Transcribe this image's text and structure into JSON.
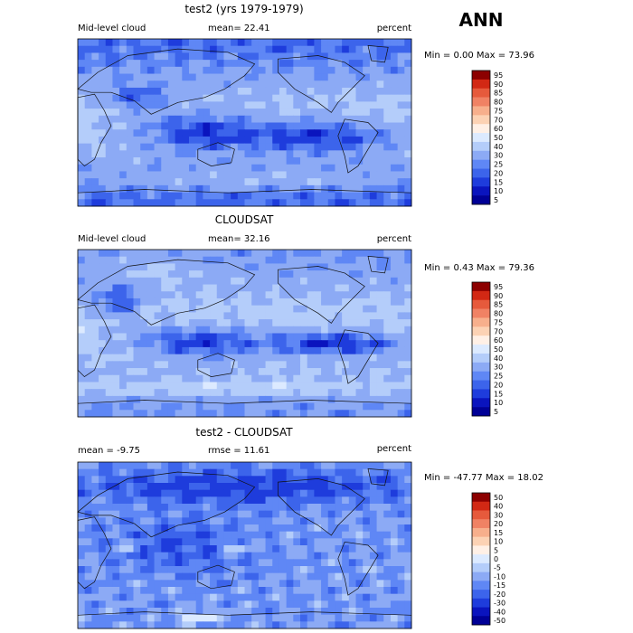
{
  "figure": {
    "season": "ANN",
    "panels": [
      {
        "title": "test2 (yrs 1979-1979)",
        "left_label": "Mid-level cloud",
        "center_label": "mean=  22.41",
        "right_label": "percent",
        "minmax_label": "Min =   0.00 Max =  73.96",
        "colorbar": [
          "95",
          "90",
          "85",
          "80",
          "75",
          "70",
          "60",
          "50",
          "40",
          "30",
          "25",
          "20",
          "15",
          "10",
          "5"
        ]
      },
      {
        "title": "CLOUDSAT",
        "left_label": "Mid-level cloud",
        "center_label": "mean=  32.16",
        "right_label": "percent",
        "minmax_label": "Min =   0.43 Max =  79.36",
        "colorbar": [
          "95",
          "90",
          "85",
          "80",
          "75",
          "70",
          "60",
          "50",
          "40",
          "30",
          "25",
          "20",
          "15",
          "10",
          "5"
        ]
      },
      {
        "title": "test2 - CLOUDSAT",
        "left_label": "mean =   -9.75",
        "center_label": "rmse =  11.61",
        "right_label": "percent",
        "minmax_label": "Min = -47.77 Max =  18.02",
        "colorbar": [
          "50",
          "40",
          "30",
          "20",
          "15",
          "10",
          "5",
          "0",
          "-5",
          "-10",
          "-15",
          "-20",
          "-30",
          "-40",
          "-50"
        ]
      }
    ]
  },
  "chart_data": [
    {
      "type": "heatmap",
      "title": "test2 (yrs 1979-1979)",
      "field": "Mid-level cloud",
      "units": "percent",
      "mean": 22.41,
      "min": 0.0,
      "max": 73.96,
      "contour_levels": [
        5,
        10,
        15,
        20,
        25,
        30,
        40,
        50,
        60,
        70,
        75,
        80,
        85,
        90,
        95
      ]
    },
    {
      "type": "heatmap",
      "title": "CLOUDSAT",
      "field": "Mid-level cloud",
      "units": "percent",
      "mean": 32.16,
      "min": 0.43,
      "max": 79.36,
      "contour_levels": [
        5,
        10,
        15,
        20,
        25,
        30,
        40,
        50,
        60,
        70,
        75,
        80,
        85,
        90,
        95
      ]
    },
    {
      "type": "heatmap",
      "title": "test2 - CLOUDSAT",
      "units": "percent",
      "mean": -9.75,
      "rmse": 11.61,
      "min": -47.77,
      "max": 18.02,
      "contour_levels": [
        -50,
        -40,
        -30,
        -20,
        -15,
        -10,
        -5,
        0,
        5,
        10,
        15,
        20,
        30,
        40,
        50
      ]
    }
  ],
  "colors": {
    "abs_scale": [
      "#000096",
      "#0a14be",
      "#1e3cdc",
      "#3c64eb",
      "#5f87f5",
      "#8caaf5",
      "#b4cdfa",
      "#dceaff",
      "#fff0e6",
      "#fcd2b4",
      "#f7af8c",
      "#f08264",
      "#e65a3c",
      "#d22814",
      "#8c0000"
    ],
    "diff_scale": [
      "#000096",
      "#0a14be",
      "#1e3cdc",
      "#3c64eb",
      "#5f87f5",
      "#8caaf5",
      "#b4cdfa",
      "#dceaff",
      "#fff0e6",
      "#fcd2b4",
      "#f7af8c",
      "#f08264",
      "#e65a3c",
      "#d22814",
      "#8c0000"
    ]
  }
}
